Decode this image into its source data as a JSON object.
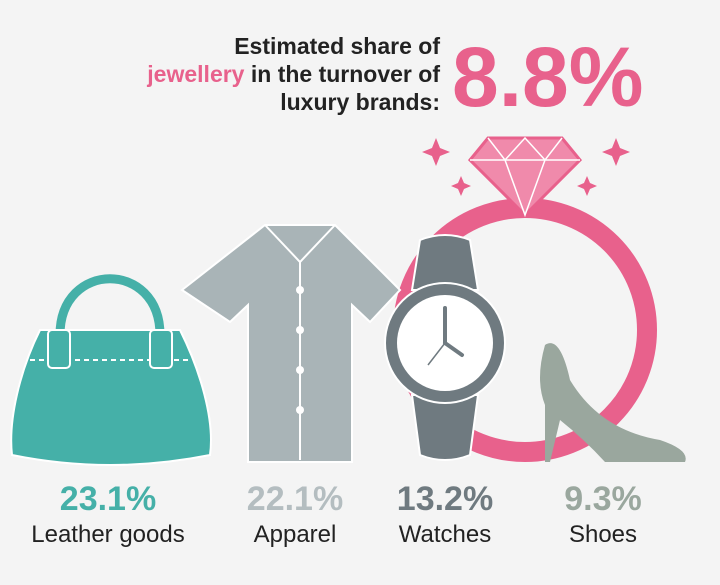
{
  "headline": {
    "line1": "Estimated share of",
    "highlight": "jewellery",
    "line2_rest": "in the turnover of",
    "line3": "luxury brands:",
    "share": "8.8%"
  },
  "items": [
    {
      "value": "23.1%",
      "label": "Leather goods"
    },
    {
      "value": "22.1%",
      "label": "Apparel"
    },
    {
      "value": "13.2%",
      "label": "Watches"
    },
    {
      "value": "9.3%",
      "label": "Shoes"
    }
  ]
}
